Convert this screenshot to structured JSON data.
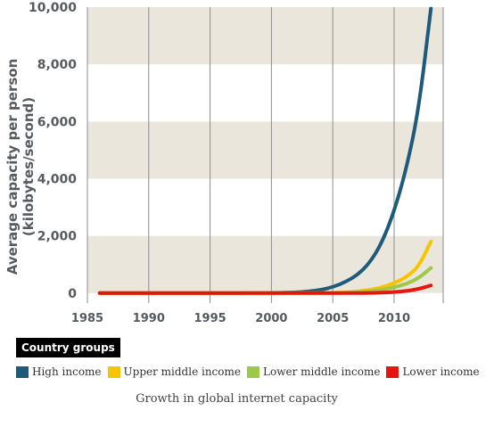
{
  "chart_data": {
    "type": "line",
    "title": "",
    "xlabel": "",
    "ylabel": "Average capacity per person",
    "ylabel_unit": "(kilobytes/second)",
    "xlim": [
      1985,
      2014
    ],
    "ylim": [
      -350,
      10000
    ],
    "x_ticks": [
      "1985",
      "1990",
      "1995",
      "2000",
      "2005",
      "2010"
    ],
    "y_ticks": [
      "0",
      "2,000",
      "4,000",
      "6,000",
      "8,000",
      "10,000"
    ],
    "grid": "vertical lines, alternating horizontal bands",
    "legend_title": "Country groups",
    "legend_position": "bottom",
    "series": [
      {
        "name": "High income",
        "color": "#1e5a7a",
        "points": [
          [
            1986,
            0
          ],
          [
            1995,
            0
          ],
          [
            2000,
            5
          ],
          [
            2002,
            25
          ],
          [
            2003,
            55
          ],
          [
            2004,
            110
          ],
          [
            2005,
            210
          ],
          [
            2006,
            380
          ],
          [
            2007,
            630
          ],
          [
            2008,
            1050
          ],
          [
            2009,
            1750
          ],
          [
            2010,
            2850
          ],
          [
            2011,
            4350
          ],
          [
            2012,
            6400
          ],
          [
            2013,
            9950
          ]
        ]
      },
      {
        "name": "Upper middle income",
        "color": "#f6c400",
        "points": [
          [
            1986,
            0
          ],
          [
            2004,
            0
          ],
          [
            2005,
            10
          ],
          [
            2006,
            25
          ],
          [
            2007,
            55
          ],
          [
            2008,
            110
          ],
          [
            2009,
            200
          ],
          [
            2010,
            340
          ],
          [
            2011,
            560
          ],
          [
            2012,
            920
          ],
          [
            2013,
            1800
          ]
        ]
      },
      {
        "name": "Lower middle income",
        "color": "#9cc94a",
        "points": [
          [
            1986,
            0
          ],
          [
            2005,
            0
          ],
          [
            2006,
            8
          ],
          [
            2007,
            25
          ],
          [
            2008,
            60
          ],
          [
            2009,
            115
          ],
          [
            2010,
            200
          ],
          [
            2011,
            320
          ],
          [
            2012,
            520
          ],
          [
            2013,
            880
          ]
        ]
      },
      {
        "name": "Lower income",
        "color": "#e8150f",
        "points": [
          [
            1986,
            0
          ],
          [
            2007,
            0
          ],
          [
            2008,
            5
          ],
          [
            2009,
            15
          ],
          [
            2010,
            35
          ],
          [
            2011,
            70
          ],
          [
            2012,
            140
          ],
          [
            2013,
            270
          ]
        ]
      }
    ]
  },
  "caption": "Growth in global internet capacity"
}
